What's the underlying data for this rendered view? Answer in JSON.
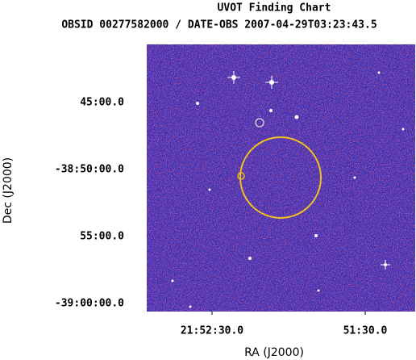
{
  "chart_data": {
    "type": "image",
    "title": "UVOT Finding Chart",
    "subtitle": "OBSID 00277582000 / DATE-OBS 2007-04-29T03:23:43.5",
    "x_label": "RA (J2000)",
    "y_label": "Dec (J2000)",
    "xlim": [
      328.2316,
      327.7934
    ],
    "ylim": [
      -39.01,
      -38.6777
    ],
    "xticks": [
      {
        "value": 328.125,
        "label": "21:52:30.0"
      },
      {
        "value": 327.875,
        "label": "51:30.0"
      }
    ],
    "yticks": [
      {
        "value": -38.75,
        "label": "45:00.0"
      },
      {
        "value": -38.8333,
        "label": "-38:50:00.0"
      },
      {
        "value": -38.9167,
        "label": "55:00.0"
      },
      {
        "value": -39.0,
        "label": "-39:00:00.0"
      }
    ]
  }
}
